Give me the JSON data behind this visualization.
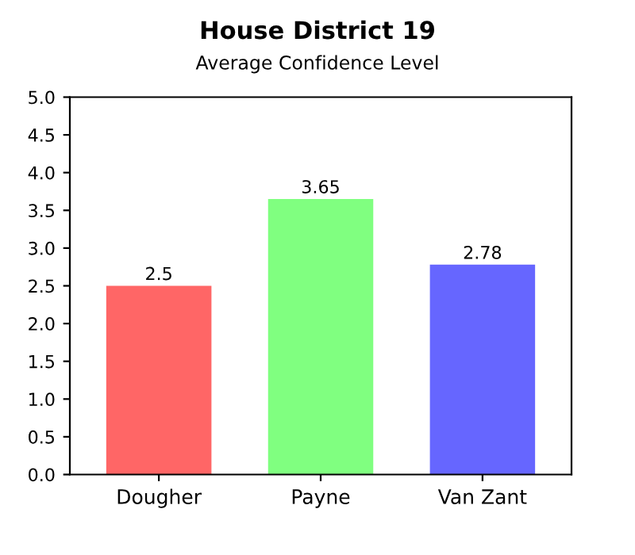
{
  "chart_data": {
    "type": "bar",
    "title": "House District 19",
    "subtitle": "Average Confidence Level",
    "categories": [
      "Dougher",
      "Payne",
      "Van Zant"
    ],
    "values": [
      2.5,
      3.65,
      2.78
    ],
    "colors": [
      "#ff6666",
      "#80ff80",
      "#6666ff"
    ],
    "ylim": [
      0,
      5
    ],
    "yticks": [
      {
        "value": 0,
        "label": "0.0"
      },
      {
        "value": 0.5,
        "label": "0.5"
      },
      {
        "value": 1,
        "label": "1.0"
      },
      {
        "value": 1.5,
        "label": "1.5"
      },
      {
        "value": 2,
        "label": "2.0"
      },
      {
        "value": 2.5,
        "label": "2.5"
      },
      {
        "value": 3,
        "label": "3.0"
      },
      {
        "value": 3.5,
        "label": "3.5"
      },
      {
        "value": 4,
        "label": "4.0"
      },
      {
        "value": 4.5,
        "label": "4.5"
      },
      {
        "value": 5,
        "label": "5.0"
      }
    ],
    "data_labels": true,
    "grid": false,
    "legend": false
  }
}
